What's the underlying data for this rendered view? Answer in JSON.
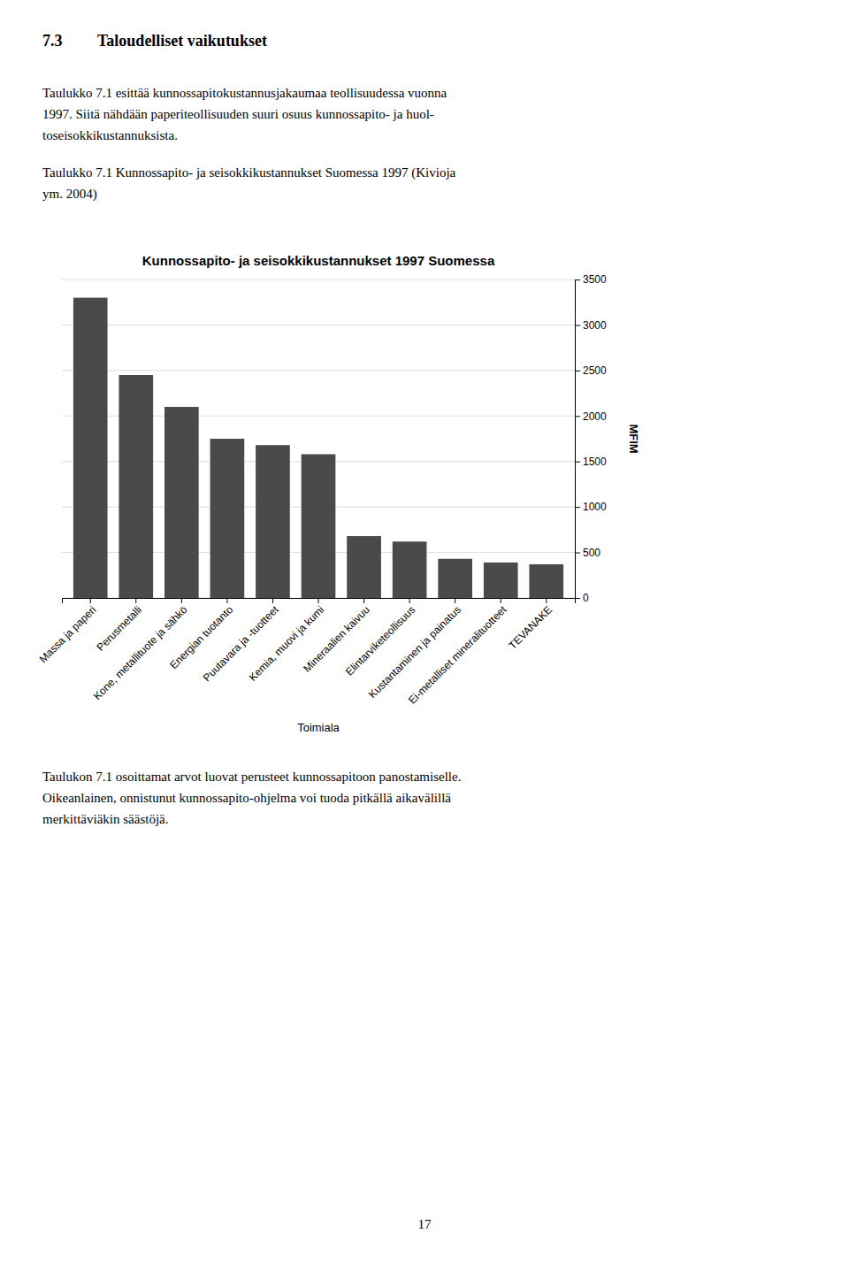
{
  "heading": {
    "number": "7.3",
    "text": "Taloudelliset vaikutukset"
  },
  "text_before": [
    [
      "Taulukko 7.1 esittää kunnossapitokustannusjakaumaa teollisuudessa vuonna",
      "1997. Siitä nähdään paperiteollisuuden suuri osuus kunnossapito- ja huol-",
      "toseisokkikustannuksista."
    ],
    [
      "Taulukko 7.1 Kunnossapito- ja seisokkikustannukset Suomessa 1997 (Kivioja",
      "ym. 2004)"
    ]
  ],
  "text_after": [
    [
      "Taulukon 7.1 osoittamat arvot luovat perusteet kunnossapitoon panostamiselle.",
      "Oikeanlainen, onnistunut kunnossapito-ohjelma voi tuoda pitkällä aikavälillä",
      "merkittäviäkin säästöjä."
    ]
  ],
  "page_number": "17",
  "chart_data": {
    "type": "bar",
    "title": "Kunnossapito- ja seisokkikustannukset 1997 Suomessa",
    "xlabel": "Toimiala",
    "ylabel": "MFIM",
    "categories": [
      "Massa ja paperi",
      "Perusmetalli",
      "Kone, metallituote ja sähkö",
      "Energian tuotanto",
      "Puutavara ja -tuotteet",
      "Kemia, muovi ja kumi",
      "Mineraalien kaivuu",
      "Elintarviketeollisuus",
      "Kustantaminen ja painatus",
      "Ei-metalliset mineralituotteet",
      "TEVANAKE"
    ],
    "values": [
      3300,
      2450,
      2100,
      1750,
      1680,
      1580,
      680,
      620,
      430,
      390,
      370
    ],
    "color": "#4a4a4a",
    "ylim": [
      0,
      3500
    ],
    "yticks": [
      0,
      500,
      1000,
      1500,
      2000,
      2500,
      3000,
      3500
    ],
    "grid": true
  }
}
